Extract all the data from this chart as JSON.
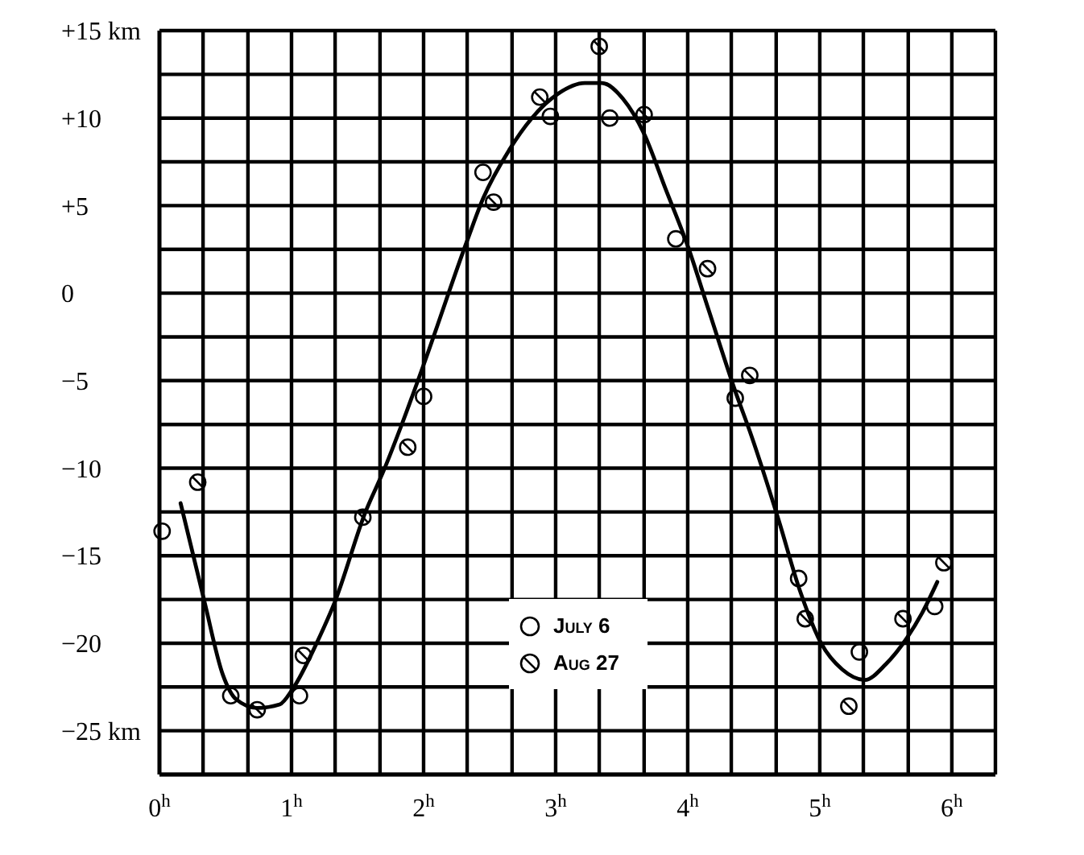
{
  "chart_data": {
    "type": "scatter",
    "xlim": [
      0,
      6.33
    ],
    "xticks": [
      {
        "value": 0,
        "label": "0$^{h}$"
      },
      {
        "value": 0.33,
        "label": null
      },
      {
        "value": 0.67,
        "label": null
      },
      {
        "value": 1,
        "label": "1$^{h}$"
      },
      {
        "value": 1.33,
        "label": null
      },
      {
        "value": 1.67,
        "label": null
      },
      {
        "value": 2,
        "label": "2$^{h}$"
      },
      {
        "value": 2.33,
        "label": null
      },
      {
        "value": 2.67,
        "label": null
      },
      {
        "value": 3,
        "label": "3$^{h}$"
      },
      {
        "value": 3.33,
        "label": null
      },
      {
        "value": 3.67,
        "label": null
      },
      {
        "value": 4,
        "label": "4$^{h}$"
      },
      {
        "value": 4.33,
        "label": null
      },
      {
        "value": 4.67,
        "label": null
      },
      {
        "value": 5,
        "label": "5$^{h}$"
      },
      {
        "value": 5.33,
        "label": null
      },
      {
        "value": 5.67,
        "label": null
      },
      {
        "value": 6,
        "label": "6$^{h}$"
      },
      {
        "value": 6.33,
        "label": null
      }
    ],
    "ylim": [
      -27.5,
      15
    ],
    "yticks": [
      {
        "value": 15,
        "label": "+15 km"
      },
      {
        "value": 12.5,
        "label": null
      },
      {
        "value": 10,
        "label": "+10"
      },
      {
        "value": 7.5,
        "label": null
      },
      {
        "value": 5,
        "label": "+5"
      },
      {
        "value": 2.5,
        "label": null
      },
      0,
      {
        "value": -2.5,
        "label": null
      },
      {
        "value": -5,
        "label": "−5"
      },
      {
        "value": -7.5,
        "label": null
      },
      {
        "value": -10,
        "label": "−10"
      },
      {
        "value": -12.5,
        "label": null
      },
      {
        "value": -15,
        "label": "−15"
      },
      {
        "value": -17.5,
        "label": null
      },
      {
        "value": -20,
        "label": "−20"
      },
      {
        "value": -22.5,
        "label": null
      },
      {
        "value": -25,
        "label": "−25 km"
      },
      {
        "value": -27.5,
        "label": null
      }
    ],
    "grid": true,
    "legend": "bottom",
    "series": [
      {
        "type": "line",
        "color": "#000000",
        "marker": "none",
        "x": [
          0.16,
          0.34,
          0.48,
          0.58,
          0.74,
          0.91,
          1.01,
          1.19,
          1.33,
          1.56,
          1.7,
          1.84,
          2.0,
          2.33,
          2.45,
          2.65,
          2.82,
          3.02,
          3.22,
          3.35,
          3.51,
          3.67,
          3.83,
          4.0,
          4.16,
          4.36,
          4.48,
          4.69,
          4.85,
          5.01,
          5.17,
          5.34,
          5.5,
          5.66,
          5.78,
          5.89
        ],
        "values": [
          -12.0,
          -17.6,
          -21.8,
          -23.2,
          -23.7,
          -23.5,
          -22.6,
          -20.0,
          -17.6,
          -12.5,
          -10.1,
          -7.4,
          -4.1,
          3.0,
          5.4,
          8.2,
          10.0,
          11.4,
          12.0,
          12.0,
          11.1,
          9.1,
          6.0,
          2.7,
          -1.0,
          -5.6,
          -8.1,
          -13.0,
          -17.0,
          -20.0,
          -21.5,
          -22.1,
          -21.2,
          -19.7,
          -18.2,
          -16.5
        ]
      },
      {
        "name": "July 6",
        "color": "#000000",
        "marker": "circle",
        "x": [
          0.02,
          0.54,
          1.06,
          2.0,
          2.45,
          2.96,
          3.41,
          3.91,
          4.36,
          4.84,
          5.3,
          5.87
        ],
        "values": [
          -13.6,
          -23.0,
          -23.0,
          -5.9,
          6.9,
          10.1,
          10.0,
          3.1,
          -6.0,
          -16.3,
          -20.5,
          -17.9
        ]
      },
      {
        "name": "Aug 27",
        "color": "#000000",
        "marker": "circle",
        "x": [
          0.29,
          0.74,
          1.09,
          1.54,
          1.88,
          2.53,
          2.88,
          3.33,
          3.67,
          4.15,
          4.47,
          4.89,
          5.22,
          5.63,
          5.94
        ],
        "values": [
          -10.8,
          -23.8,
          -20.7,
          -12.8,
          -8.8,
          5.2,
          11.2,
          14.1,
          10.2,
          1.4,
          -4.7,
          -18.6,
          -23.6,
          -18.6,
          -15.4
        ]
      }
    ]
  }
}
